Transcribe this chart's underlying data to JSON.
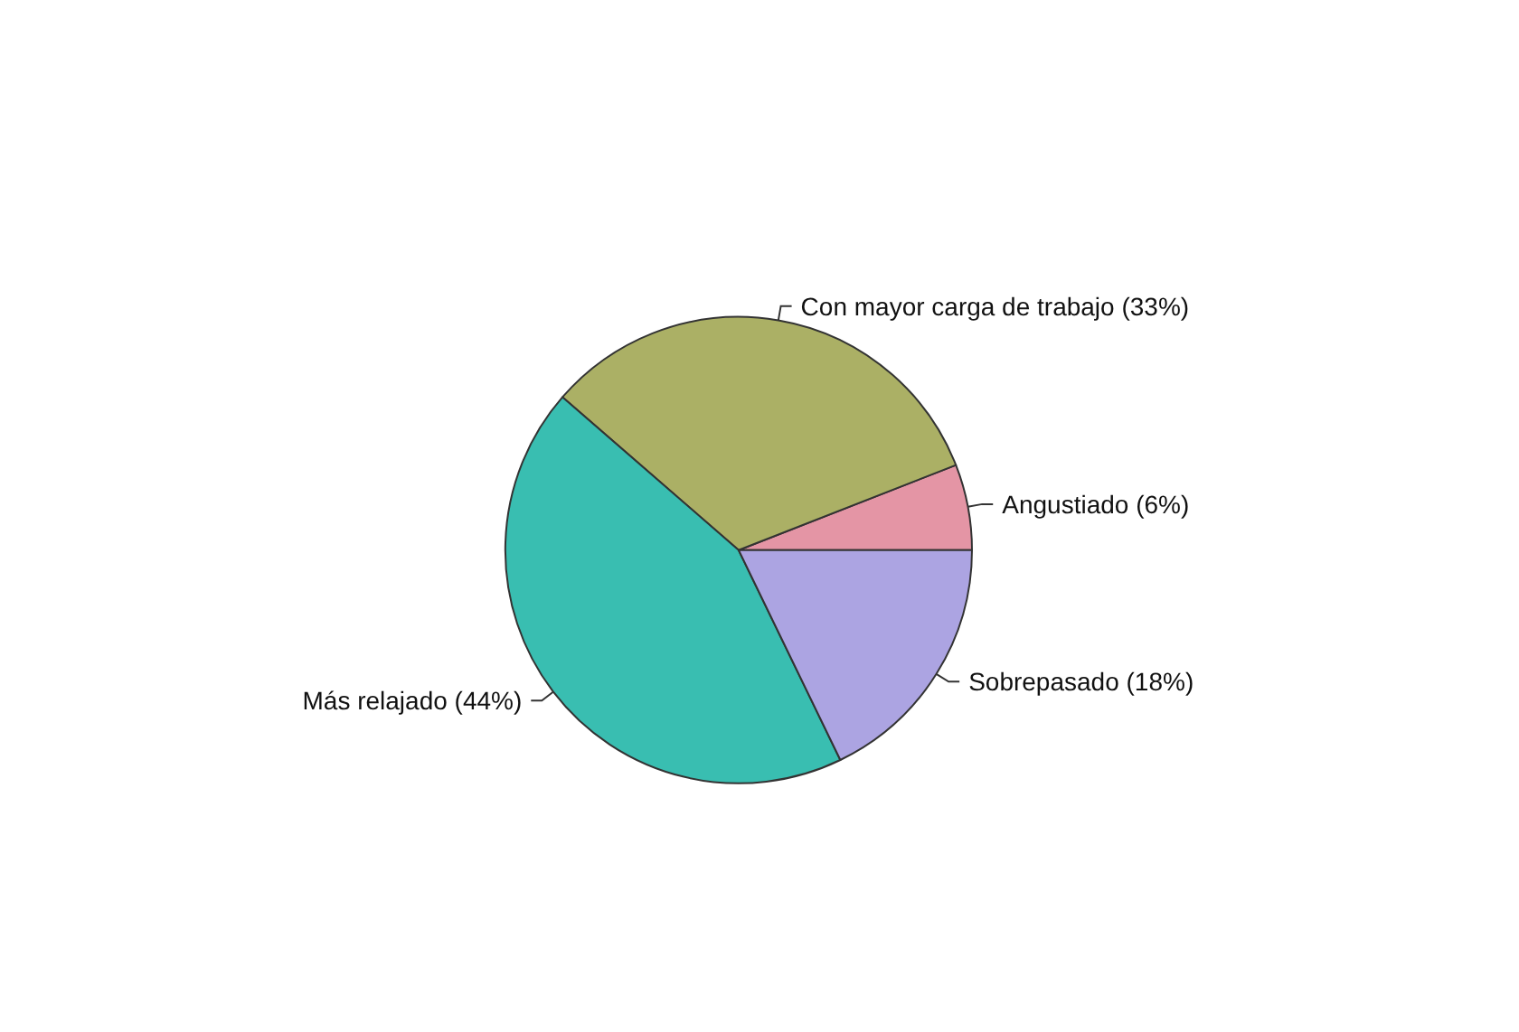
{
  "chart_data": {
    "type": "pie",
    "categories": [
      "Angustiado (6%)",
      "Con mayor carga de trabajo (33%)",
      "Más relajado (44%)",
      "Sobrepasado (18%)"
    ],
    "values": [
      6,
      33,
      44,
      18
    ],
    "colors": [
      "#e495a5",
      "#abb065",
      "#39beb1",
      "#aca4e2"
    ]
  }
}
